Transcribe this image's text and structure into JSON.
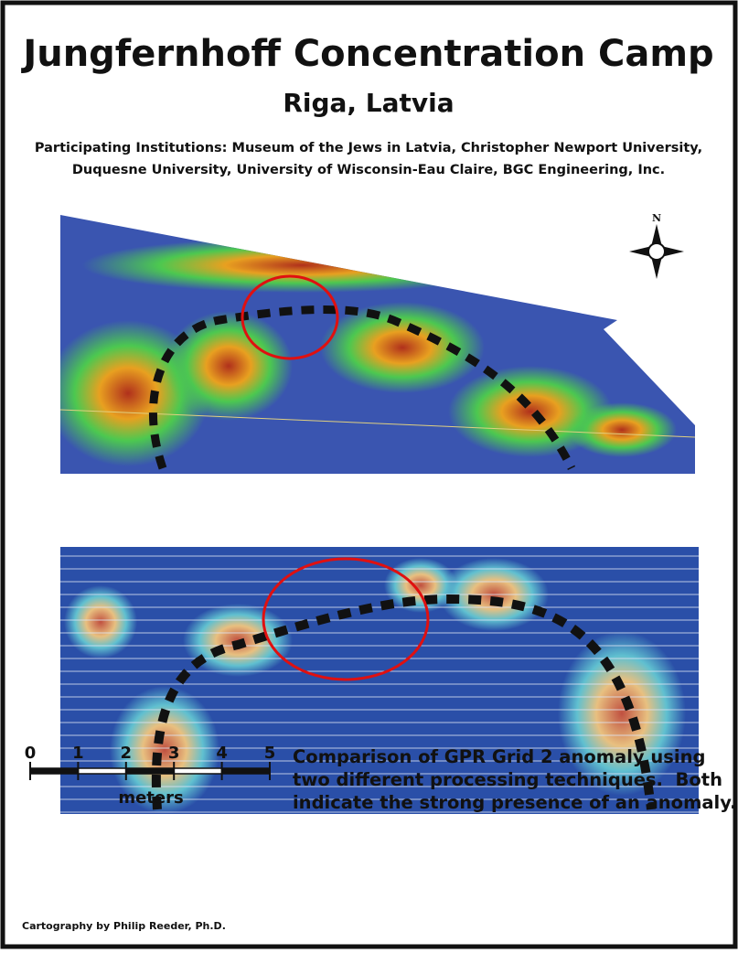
{
  "header": {
    "title": "Jungfernhoff Concentration Camp",
    "subtitle": "Riga, Latvia",
    "institutions": [
      "Participating Institutions: Museum of the Jews in Latvia, Christopher Newport University,",
      "Duquesne University, University of Wisconsin-Eau Claire, BGC Engineering, Inc."
    ]
  },
  "compass": {
    "label": "N"
  },
  "scale_bar": {
    "labels": [
      0,
      1,
      2,
      3,
      4,
      5
    ],
    "unit": "meters"
  },
  "caption": [
    "Comparison of GPR Grid 2 anomaly using",
    "two different processing techniques.  Both",
    "indicate the strong presence of an anomaly."
  ],
  "credit": "Cartography by Philip Reeder, Ph.D."
}
